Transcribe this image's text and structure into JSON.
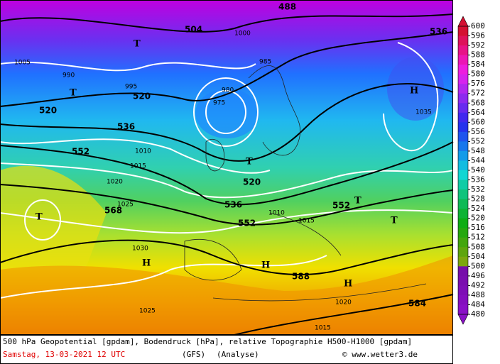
{
  "map": {
    "contour_labels": [
      504,
      488,
      536,
      520,
      520,
      536,
      552,
      552,
      520,
      536,
      552,
      568,
      588,
      584,
      1000,
      1005,
      1010,
      1015,
      1020,
      1025,
      1030,
      985,
      990,
      995,
      980,
      975,
      1035,
      1010,
      1015,
      1020,
      1025,
      1015
    ],
    "pressure_centers": [
      "H",
      "T",
      "T",
      "T",
      "H",
      "T",
      "T",
      "H",
      "H",
      "T"
    ]
  },
  "legend": {
    "labels": [
      600,
      596,
      592,
      588,
      584,
      580,
      576,
      572,
      568,
      564,
      560,
      556,
      552,
      548,
      544,
      540,
      536,
      532,
      528,
      524,
      520,
      516,
      512,
      508,
      504,
      500,
      496,
      492,
      488,
      484,
      480
    ]
  },
  "footer": {
    "line1": "500 hPa Geopotential [gpdam], Bodendruck [hPa], relative Topographie H500-H1000 [gpdam]",
    "date": "Samstag, 13-03-2021  12 UTC",
    "model": "(GFS)",
    "run": "(Analyse)",
    "credit": "© www.wetter3.de"
  }
}
